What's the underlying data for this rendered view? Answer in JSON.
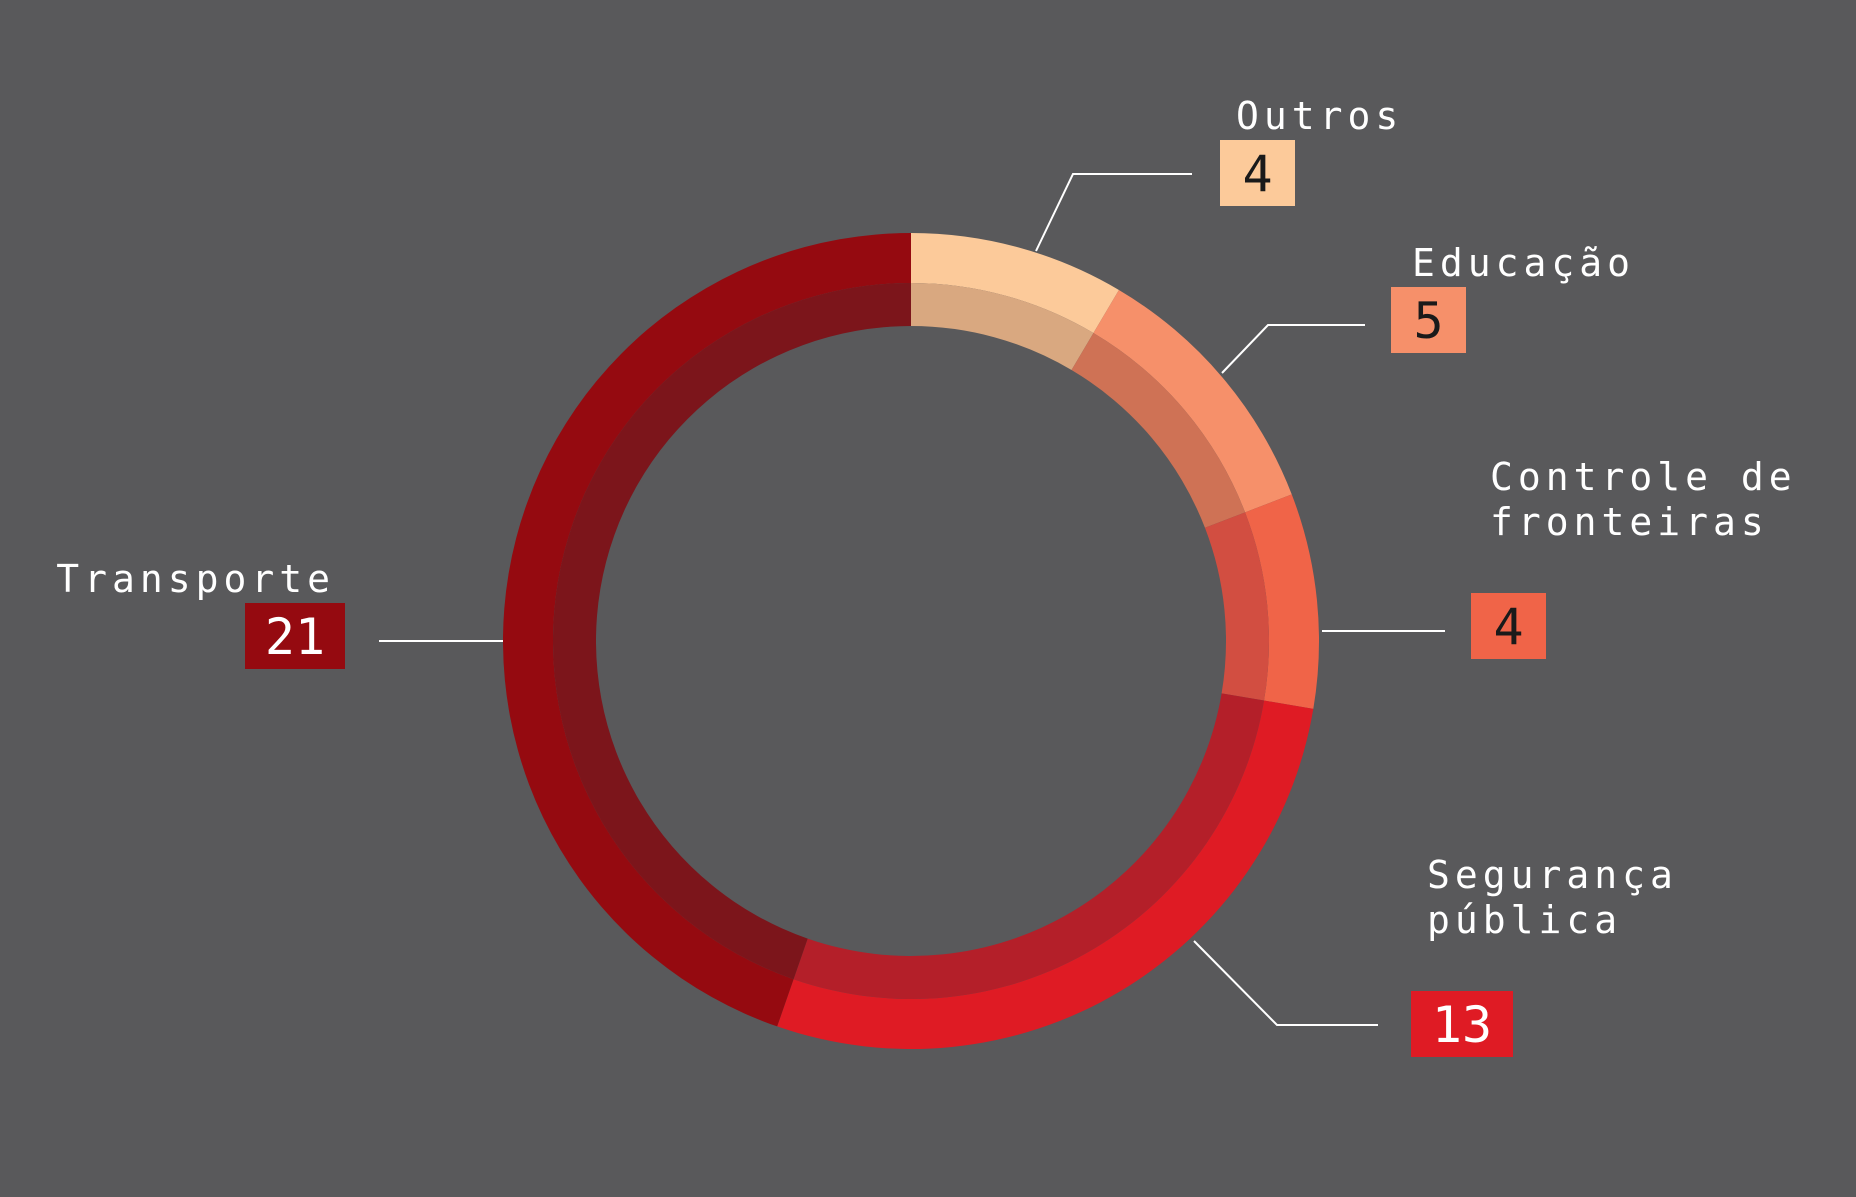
{
  "chart_data": {
    "type": "donut",
    "slices": [
      {
        "label": [
          "Outros"
        ],
        "value": 4,
        "color": "#fcca9a",
        "inner_color": "#d9a880",
        "value_text_color": "#1a1a1a"
      },
      {
        "label": [
          "Educação"
        ],
        "value": 5,
        "color": "#f6906a",
        "inner_color": "#cf7255",
        "value_text_color": "#1a1a1a"
      },
      {
        "label": [
          "Controle de",
          "fronteiras"
        ],
        "value": 4,
        "color": "#f06448",
        "inner_color": "#d24e41",
        "value_text_color": "#1a1a1a"
      },
      {
        "label": [
          "Segurança",
          "pública"
        ],
        "value": 13,
        "color": "#df1b24",
        "inner_color": "#b41f29",
        "value_text_color": "#ffffff"
      },
      {
        "label": [
          "Transporte"
        ],
        "value": 21,
        "color": "#950a10",
        "inner_color": "#7c151b",
        "value_text_color": "#ffffff"
      }
    ]
  }
}
